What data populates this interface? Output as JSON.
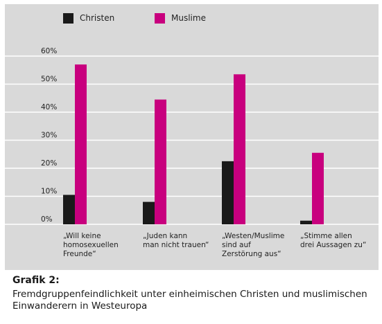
{
  "chart_data": {
    "type": "bar",
    "categories": [
      [
        "„Will keine",
        "homosexuellen",
        "Freunde“"
      ],
      [
        "„Juden kann",
        "man nicht trauen“"
      ],
      [
        "„Westen/Muslime",
        "sind auf",
        "Zerstörung aus“"
      ],
      [
        "„Stimme allen",
        "drei Aussagen zu“"
      ]
    ],
    "series": [
      {
        "name": "Christen",
        "color": "#1a1a1a",
        "values": [
          10.5,
          8,
          22.5,
          1.3
        ]
      },
      {
        "name": "Muslime",
        "color": "#c8007e",
        "values": [
          57,
          44.5,
          53.5,
          25.5
        ]
      }
    ],
    "yticks": [
      "0%",
      "10%",
      "20%",
      "30%",
      "40%",
      "50%",
      "60%"
    ],
    "ylim": [
      0,
      60
    ],
    "grid": true,
    "legend": "top-left"
  },
  "caption": {
    "label": "Grafik 2:",
    "text": "Fremdgruppenfeindlichkeit unter einheimischen Christen und muslimischen Einwanderern in Westeuropa"
  }
}
